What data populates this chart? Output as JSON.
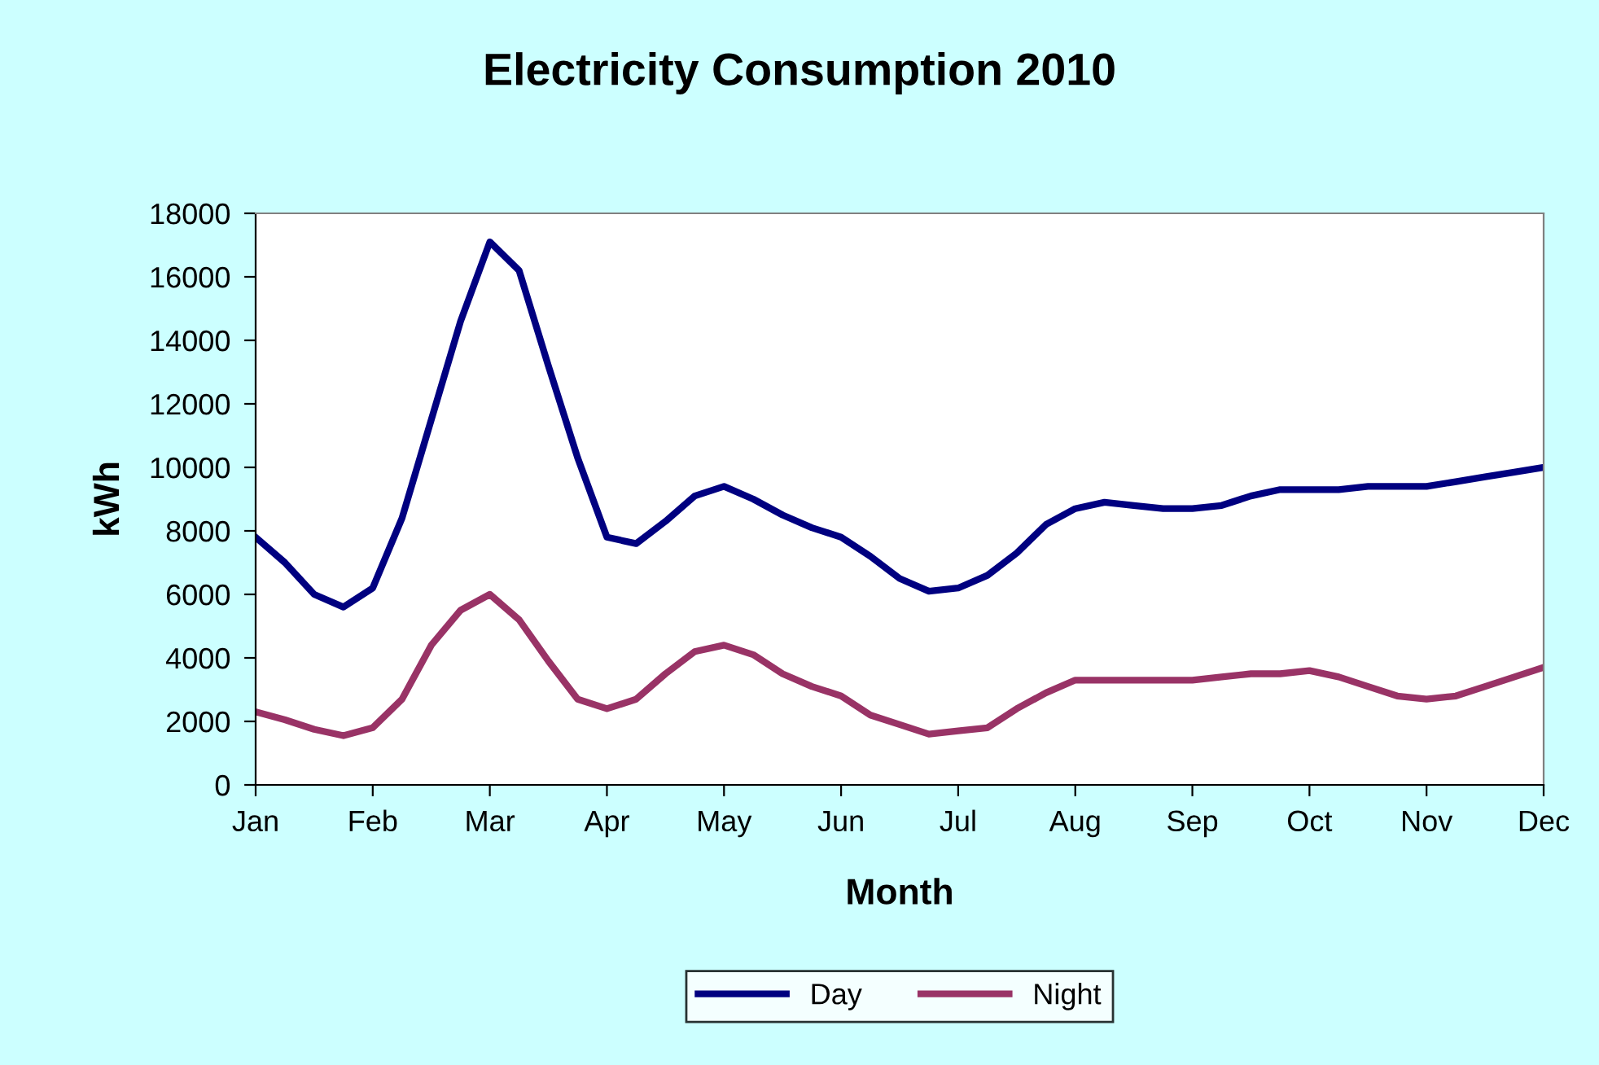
{
  "chart_data": {
    "type": "line",
    "title": "Electricity Consumption 2010",
    "xlabel": "Month",
    "ylabel": "kWh",
    "categories": [
      "Jan",
      null,
      null,
      null,
      "Feb",
      null,
      null,
      null,
      "Mar",
      null,
      null,
      null,
      "Apr",
      null,
      null,
      null,
      "May",
      null,
      null,
      null,
      "Jun",
      null,
      null,
      null,
      "Jul",
      null,
      null,
      null,
      "Aug",
      null,
      null,
      null,
      "Sep",
      null,
      null,
      null,
      "Oct",
      null,
      null,
      null,
      "Nov",
      null,
      null,
      null,
      "Dec"
    ],
    "ylim": [
      0,
      18000
    ],
    "yticks": [
      0,
      2000,
      4000,
      6000,
      8000,
      10000,
      12000,
      14000,
      16000,
      18000
    ],
    "grid": false,
    "legend": "bottom",
    "marker": "none",
    "line_style": "solid",
    "series": [
      {
        "name": "Day",
        "color": "#000080",
        "values": [
          7800,
          7000,
          6000,
          5600,
          6200,
          8400,
          11500,
          14600,
          17100,
          16200,
          13200,
          10300,
          7800,
          7600,
          8300,
          9100,
          9400,
          9000,
          8500,
          8100,
          7800,
          7200,
          6500,
          6100,
          6200,
          6600,
          7300,
          8200,
          8700,
          8900,
          8800,
          8700,
          8700,
          8800,
          9100,
          9300,
          9300,
          9300,
          9400,
          9400,
          9400,
          9550,
          9700,
          9850,
          10000
        ]
      },
      {
        "name": "Night",
        "color": "#993366",
        "values": [
          2300,
          2050,
          1750,
          1550,
          1800,
          2700,
          4400,
          5500,
          6000,
          5200,
          3900,
          2700,
          2400,
          2700,
          3500,
          4200,
          4400,
          4100,
          3500,
          3100,
          2800,
          2200,
          1900,
          1600,
          1700,
          1800,
          2400,
          2900,
          3300,
          3300,
          3300,
          3300,
          3300,
          3400,
          3500,
          3500,
          3600,
          3400,
          3100,
          2800,
          2700,
          2800,
          3100,
          3400,
          3700
        ]
      }
    ]
  }
}
